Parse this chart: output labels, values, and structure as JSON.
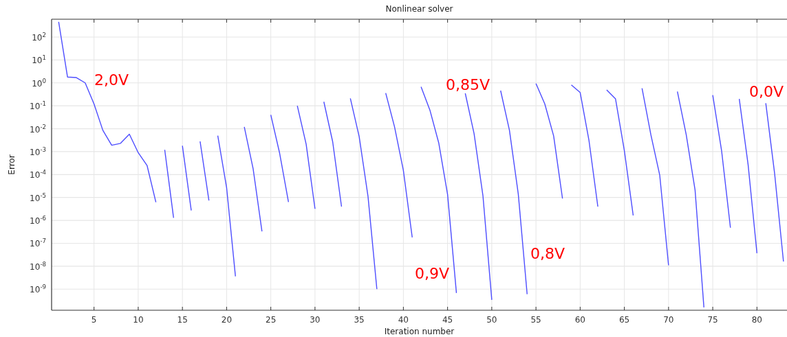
{
  "chart_data": {
    "type": "line",
    "title": "Nonlinear solver",
    "xlabel": "Iteration number",
    "ylabel": "Error",
    "log": "y",
    "grid": true,
    "xlim": [
      0.2,
      83.4
    ],
    "xticks": [
      5,
      10,
      15,
      20,
      25,
      30,
      35,
      40,
      45,
      50,
      55,
      60,
      65,
      70,
      75,
      80
    ],
    "ylim": [
      1.2e-10,
      600
    ],
    "yticks": [
      {
        "value": 1e-09,
        "label": "10$^{-9}$"
      },
      {
        "value": 1e-08,
        "label": "10$^{-8}$"
      },
      {
        "value": 1e-07,
        "label": "10$^{-7}$"
      },
      {
        "value": 1e-06,
        "label": "10$^{-6}$"
      },
      {
        "value": 1e-05,
        "label": "10$^{-5}$"
      },
      {
        "value": 0.0001,
        "label": "10$^{-4}$"
      },
      {
        "value": 0.001,
        "label": "10$^{-3}$"
      },
      {
        "value": 0.01,
        "label": "10$^{-2}$"
      },
      {
        "value": 0.1,
        "label": "10$^{-1}$"
      },
      {
        "value": 1,
        "label": "10$^{0}$"
      },
      {
        "value": 10,
        "label": "10$^{1}$"
      },
      {
        "value": 100,
        "label": "10$^{2}$"
      }
    ],
    "series": [
      {
        "color": "#4d4dff",
        "x": [
          1,
          2,
          3,
          4,
          5,
          6,
          7,
          8,
          9,
          10,
          11,
          12
        ],
        "values": [
          460,
          1.8,
          1.7,
          1.0,
          0.12,
          0.0085,
          0.0019,
          0.0023,
          0.0058,
          0.0009,
          0.00025,
          6.2e-06
        ]
      },
      {
        "color": "#4d4dff",
        "x": [
          13,
          14
        ],
        "values": [
          0.0012,
          1.3e-06
        ]
      },
      {
        "color": "#4d4dff",
        "x": [
          15,
          16
        ],
        "values": [
          0.0018,
          2.7e-06
        ]
      },
      {
        "color": "#4d4dff",
        "x": [
          17,
          18
        ],
        "values": [
          0.0028,
          7.4e-06
        ]
      },
      {
        "color": "#4d4dff",
        "x": [
          19,
          20,
          21
        ],
        "values": [
          0.005,
          2.7e-05,
          3.6e-09
        ]
      },
      {
        "color": "#4d4dff",
        "x": [
          22,
          23,
          24
        ],
        "values": [
          0.012,
          0.00018,
          3.3e-07
        ]
      },
      {
        "color": "#4d4dff",
        "x": [
          25,
          26,
          27
        ],
        "values": [
          0.04,
          0.00085,
          6.3e-06
        ]
      },
      {
        "color": "#4d4dff",
        "x": [
          28,
          29,
          30
        ],
        "values": [
          0.1,
          0.0021,
          3.2e-06
        ]
      },
      {
        "color": "#4d4dff",
        "x": [
          31,
          32,
          33
        ],
        "values": [
          0.15,
          0.0027,
          4e-06
        ]
      },
      {
        "color": "#4d4dff",
        "x": [
          34,
          35,
          36,
          37
        ],
        "values": [
          0.21,
          0.0045,
          1.1e-05,
          1e-09
        ]
      },
      {
        "color": "#4d4dff",
        "x": [
          38,
          39,
          40,
          41
        ],
        "values": [
          0.36,
          0.012,
          0.00015,
          1.8e-07
        ]
      },
      {
        "color": "#4d4dff",
        "x": [
          42,
          43,
          44,
          45,
          46
        ],
        "values": [
          0.67,
          0.065,
          0.0024,
          1.35e-05,
          6.8e-10
        ]
      },
      {
        "color": "#4d4dff",
        "x": [
          47,
          48,
          49,
          50
        ],
        "values": [
          0.35,
          0.006,
          1.2e-05,
          3.4e-10
        ]
      },
      {
        "color": "#4d4dff",
        "x": [
          51,
          52,
          53,
          54
        ],
        "values": [
          0.46,
          0.0085,
          1.4e-05,
          6e-10
        ]
      },
      {
        "color": "#4d4dff",
        "x": [
          55,
          56,
          57,
          58
        ],
        "values": [
          0.93,
          0.12,
          0.0048,
          9e-06
        ]
      },
      {
        "color": "#4d4dff",
        "x": [
          59,
          60,
          61,
          62
        ],
        "values": [
          0.81,
          0.38,
          0.003,
          4e-06
        ]
      },
      {
        "color": "#4d4dff",
        "x": [
          63,
          64,
          65,
          66
        ],
        "values": [
          0.49,
          0.2,
          0.0011,
          1.65e-06
        ]
      },
      {
        "color": "#4d4dff",
        "x": [
          67,
          68,
          69,
          70
        ],
        "values": [
          0.58,
          0.0054,
          9.5e-05,
          1.1e-08
        ]
      },
      {
        "color": "#4d4dff",
        "x": [
          71,
          72,
          73,
          74
        ],
        "values": [
          0.42,
          0.0054,
          2.1e-05,
          1.6e-10
        ]
      },
      {
        "color": "#4d4dff",
        "x": [
          75,
          76,
          77
        ],
        "values": [
          0.29,
          0.0011,
          4.8e-07
        ]
      },
      {
        "color": "#4d4dff",
        "x": [
          78,
          79,
          80
        ],
        "values": [
          0.2,
          0.00027,
          3.7e-08
        ]
      },
      {
        "color": "#4d4dff",
        "x": [
          81,
          82,
          83
        ],
        "values": [
          0.13,
          0.00011,
          1.6e-08
        ]
      }
    ],
    "annotations": [
      "2,0V",
      "0,85V",
      "0,9V",
      "0,8V",
      "0,0V"
    ]
  }
}
